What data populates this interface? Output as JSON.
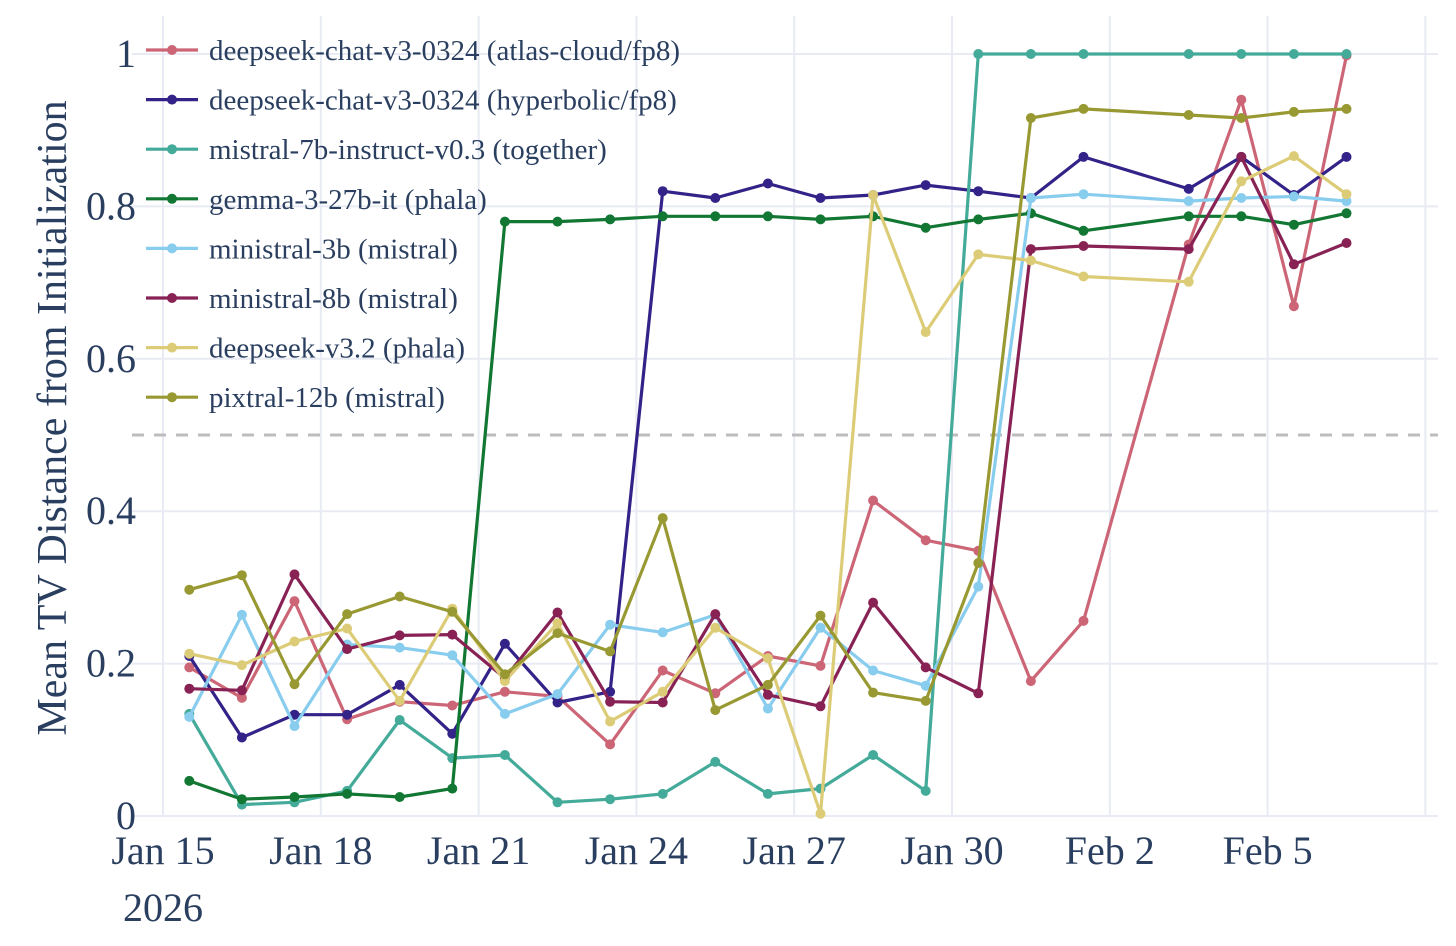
{
  "chart_data": {
    "type": "line",
    "title": "",
    "ylabel": "Mean TV Distance from Initialization",
    "xlabel": "",
    "x_ticks": [
      "Jan 15",
      "Jan 18",
      "Jan 21",
      "Jan 24",
      "Jan 27",
      "Jan 30",
      "Feb 2",
      "Feb 5"
    ],
    "x_tick_dates": [
      "2026-01-15",
      "2026-01-18",
      "2026-01-21",
      "2026-01-24",
      "2026-01-27",
      "2026-01-30",
      "2026-02-02",
      "2026-02-05"
    ],
    "x_year_label": "2026",
    "xlim": [
      "2026-01-15",
      "2026-02-09"
    ],
    "ylim": [
      0,
      1.04
    ],
    "y_ticks": [
      0,
      0.2,
      0.4,
      0.6,
      0.8,
      1
    ],
    "y_tick_labels": [
      "0",
      "0.2",
      "0.4",
      "0.6",
      "0.8",
      "1"
    ],
    "reference_line": {
      "y": 0.5,
      "style": "dashed",
      "color": "#bdbdbd"
    },
    "grid": true,
    "legend_position": "top-left",
    "series": [
      {
        "name": "deepseek-chat-v3-0324 (atlas-cloud/fp8)",
        "color": "#cc6677",
        "points": [
          [
            "2026-01-15T12:00",
            0.195
          ],
          [
            "2026-01-16T12:00",
            0.155
          ],
          [
            "2026-01-17T12:00",
            0.282
          ],
          [
            "2026-01-18T12:00",
            0.127
          ],
          [
            "2026-01-19T12:00",
            0.15
          ],
          [
            "2026-01-20T12:00",
            0.145
          ],
          [
            "2026-01-21T12:00",
            0.163
          ],
          [
            "2026-01-22T12:00",
            0.157
          ],
          [
            "2026-01-23T12:00",
            0.094
          ],
          [
            "2026-01-24T12:00",
            0.191
          ],
          [
            "2026-01-25T12:00",
            0.161
          ],
          [
            "2026-01-26T12:00",
            0.21
          ],
          [
            "2026-01-27T12:00",
            0.197
          ],
          [
            "2026-01-28T12:00",
            0.414
          ],
          [
            "2026-01-29T12:00",
            0.362
          ],
          [
            "2026-01-30T12:00",
            0.348
          ],
          [
            "2026-01-31T12:00",
            0.177
          ],
          [
            "2026-02-01T12:00",
            0.256
          ],
          [
            "2026-02-03T12:00",
            0.75
          ],
          [
            "2026-02-04T12:00",
            0.94
          ],
          [
            "2026-02-05T12:00",
            0.669
          ],
          [
            "2026-02-06T12:00",
            0.998
          ]
        ]
      },
      {
        "name": "deepseek-chat-v3-0324 (hyperbolic/fp8)",
        "color": "#332288",
        "points": [
          [
            "2026-01-15T12:00",
            0.21
          ],
          [
            "2026-01-16T12:00",
            0.103
          ],
          [
            "2026-01-17T12:00",
            0.133
          ],
          [
            "2026-01-18T12:00",
            0.133
          ],
          [
            "2026-01-19T12:00",
            0.172
          ],
          [
            "2026-01-20T12:00",
            0.108
          ],
          [
            "2026-01-21T12:00",
            0.226
          ],
          [
            "2026-01-22T12:00",
            0.149
          ],
          [
            "2026-01-23T12:00",
            0.163
          ],
          [
            "2026-01-24T12:00",
            0.82
          ],
          [
            "2026-01-25T12:00",
            0.811
          ],
          [
            "2026-01-26T12:00",
            0.83
          ],
          [
            "2026-01-27T12:00",
            0.811
          ],
          [
            "2026-01-28T12:00",
            0.815
          ],
          [
            "2026-01-29T12:00",
            0.828
          ],
          [
            "2026-01-30T12:00",
            0.82
          ],
          [
            "2026-01-31T12:00",
            0.811
          ],
          [
            "2026-02-01T12:00",
            0.865
          ],
          [
            "2026-02-03T12:00",
            0.823
          ],
          [
            "2026-02-04T12:00",
            0.865
          ],
          [
            "2026-02-05T12:00",
            0.815
          ],
          [
            "2026-02-06T12:00",
            0.865
          ]
        ]
      },
      {
        "name": "mistral-7b-instruct-v0.3 (together)",
        "color": "#44aa99",
        "points": [
          [
            "2026-01-15T12:00",
            0.134
          ],
          [
            "2026-01-16T12:00",
            0.015
          ],
          [
            "2026-01-17T12:00",
            0.018
          ],
          [
            "2026-01-18T12:00",
            0.033
          ],
          [
            "2026-01-19T12:00",
            0.126
          ],
          [
            "2026-01-20T12:00",
            0.076
          ],
          [
            "2026-01-21T12:00",
            0.08
          ],
          [
            "2026-01-22T12:00",
            0.018
          ],
          [
            "2026-01-23T12:00",
            0.022
          ],
          [
            "2026-01-24T12:00",
            0.029
          ],
          [
            "2026-01-25T12:00",
            0.071
          ],
          [
            "2026-01-26T12:00",
            0.029
          ],
          [
            "2026-01-27T12:00",
            0.036
          ],
          [
            "2026-01-28T12:00",
            0.08
          ],
          [
            "2026-01-29T12:00",
            0.033
          ],
          [
            "2026-01-30T12:00",
            1.0
          ],
          [
            "2026-01-31T12:00",
            1.0
          ],
          [
            "2026-02-01T12:00",
            1.0
          ],
          [
            "2026-02-03T12:00",
            1.0
          ],
          [
            "2026-02-04T12:00",
            1.0
          ],
          [
            "2026-02-05T12:00",
            1.0
          ],
          [
            "2026-02-06T12:00",
            1.0
          ]
        ]
      },
      {
        "name": "gemma-3-27b-it (phala)",
        "color": "#117733",
        "points": [
          [
            "2026-01-15T12:00",
            0.046
          ],
          [
            "2026-01-16T12:00",
            0.022
          ],
          [
            "2026-01-17T12:00",
            0.025
          ],
          [
            "2026-01-18T12:00",
            0.029
          ],
          [
            "2026-01-19T12:00",
            0.025
          ],
          [
            "2026-01-20T12:00",
            0.036
          ],
          [
            "2026-01-21T12:00",
            0.78
          ],
          [
            "2026-01-22T12:00",
            0.78
          ],
          [
            "2026-01-23T12:00",
            0.783
          ],
          [
            "2026-01-24T12:00",
            0.787
          ],
          [
            "2026-01-25T12:00",
            0.787
          ],
          [
            "2026-01-26T12:00",
            0.787
          ],
          [
            "2026-01-27T12:00",
            0.783
          ],
          [
            "2026-01-28T12:00",
            0.787
          ],
          [
            "2026-01-29T12:00",
            0.772
          ],
          [
            "2026-01-30T12:00",
            0.783
          ],
          [
            "2026-01-31T12:00",
            0.791
          ],
          [
            "2026-02-01T12:00",
            0.768
          ],
          [
            "2026-02-03T12:00",
            0.787
          ],
          [
            "2026-02-04T12:00",
            0.787
          ],
          [
            "2026-02-05T12:00",
            0.776
          ],
          [
            "2026-02-06T12:00",
            0.791
          ]
        ]
      },
      {
        "name": "ministral-3b (mistral)",
        "color": "#88ccee",
        "points": [
          [
            "2026-01-15T12:00",
            0.13
          ],
          [
            "2026-01-16T12:00",
            0.264
          ],
          [
            "2026-01-17T12:00",
            0.118
          ],
          [
            "2026-01-18T12:00",
            0.225
          ],
          [
            "2026-01-19T12:00",
            0.221
          ],
          [
            "2026-01-20T12:00",
            0.211
          ],
          [
            "2026-01-21T12:00",
            0.134
          ],
          [
            "2026-01-22T12:00",
            0.16
          ],
          [
            "2026-01-23T12:00",
            0.251
          ],
          [
            "2026-01-24T12:00",
            0.241
          ],
          [
            "2026-01-25T12:00",
            0.264
          ],
          [
            "2026-01-26T12:00",
            0.141
          ],
          [
            "2026-01-27T12:00",
            0.247
          ],
          [
            "2026-01-28T12:00",
            0.191
          ],
          [
            "2026-01-29T12:00",
            0.171
          ],
          [
            "2026-01-30T12:00",
            0.301
          ],
          [
            "2026-01-31T12:00",
            0.811
          ],
          [
            "2026-02-01T12:00",
            0.816
          ],
          [
            "2026-02-03T12:00",
            0.807
          ],
          [
            "2026-02-04T12:00",
            0.811
          ],
          [
            "2026-02-05T12:00",
            0.813
          ],
          [
            "2026-02-06T12:00",
            0.807
          ]
        ]
      },
      {
        "name": "ministral-8b (mistral)",
        "color": "#882255",
        "points": [
          [
            "2026-01-15T12:00",
            0.167
          ],
          [
            "2026-01-16T12:00",
            0.165
          ],
          [
            "2026-01-17T12:00",
            0.317
          ],
          [
            "2026-01-18T12:00",
            0.219
          ],
          [
            "2026-01-19T12:00",
            0.237
          ],
          [
            "2026-01-20T12:00",
            0.238
          ],
          [
            "2026-01-21T12:00",
            0.181
          ],
          [
            "2026-01-22T12:00",
            0.267
          ],
          [
            "2026-01-23T12:00",
            0.15
          ],
          [
            "2026-01-24T12:00",
            0.149
          ],
          [
            "2026-01-25T12:00",
            0.265
          ],
          [
            "2026-01-26T12:00",
            0.159
          ],
          [
            "2026-01-27T12:00",
            0.144
          ],
          [
            "2026-01-28T12:00",
            0.28
          ],
          [
            "2026-01-29T12:00",
            0.195
          ],
          [
            "2026-01-30T12:00",
            0.161
          ],
          [
            "2026-01-31T12:00",
            0.744
          ],
          [
            "2026-02-01T12:00",
            0.748
          ],
          [
            "2026-02-03T12:00",
            0.744
          ],
          [
            "2026-02-04T12:00",
            0.865
          ],
          [
            "2026-02-05T12:00",
            0.724
          ],
          [
            "2026-02-06T12:00",
            0.752
          ]
        ]
      },
      {
        "name": "deepseek-v3.2 (phala)",
        "color": "#ddcc77",
        "points": [
          [
            "2026-01-15T12:00",
            0.213
          ],
          [
            "2026-01-16T12:00",
            0.198
          ],
          [
            "2026-01-17T12:00",
            0.229
          ],
          [
            "2026-01-18T12:00",
            0.246
          ],
          [
            "2026-01-19T12:00",
            0.151
          ],
          [
            "2026-01-20T12:00",
            0.272
          ],
          [
            "2026-01-21T12:00",
            0.177
          ],
          [
            "2026-01-22T12:00",
            0.253
          ],
          [
            "2026-01-23T12:00",
            0.124
          ],
          [
            "2026-01-24T12:00",
            0.163
          ],
          [
            "2026-01-25T12:00",
            0.247
          ],
          [
            "2026-01-26T12:00",
            0.207
          ],
          [
            "2026-01-27T12:00",
            0.003
          ],
          [
            "2026-01-28T12:00",
            0.815
          ],
          [
            "2026-01-29T12:00",
            0.635
          ],
          [
            "2026-01-30T12:00",
            0.737
          ],
          [
            "2026-01-31T12:00",
            0.729
          ],
          [
            "2026-02-01T12:00",
            0.708
          ],
          [
            "2026-02-03T12:00",
            0.701
          ],
          [
            "2026-02-04T12:00",
            0.833
          ],
          [
            "2026-02-05T12:00",
            0.866
          ],
          [
            "2026-02-06T12:00",
            0.816
          ]
        ]
      },
      {
        "name": "pixtral-12b (mistral)",
        "color": "#999933",
        "points": [
          [
            "2026-01-15T12:00",
            0.297
          ],
          [
            "2026-01-16T12:00",
            0.316
          ],
          [
            "2026-01-17T12:00",
            0.173
          ],
          [
            "2026-01-18T12:00",
            0.265
          ],
          [
            "2026-01-19T12:00",
            0.288
          ],
          [
            "2026-01-20T12:00",
            0.268
          ],
          [
            "2026-01-21T12:00",
            0.186
          ],
          [
            "2026-01-22T12:00",
            0.24
          ],
          [
            "2026-01-23T12:00",
            0.216
          ],
          [
            "2026-01-24T12:00",
            0.391
          ],
          [
            "2026-01-25T12:00",
            0.139
          ],
          [
            "2026-01-26T12:00",
            0.172
          ],
          [
            "2026-01-27T12:00",
            0.263
          ],
          [
            "2026-01-28T12:00",
            0.162
          ],
          [
            "2026-01-29T12:00",
            0.151
          ],
          [
            "2026-01-30T12:00",
            0.332
          ],
          [
            "2026-01-31T12:00",
            0.916
          ],
          [
            "2026-02-01T12:00",
            0.928
          ],
          [
            "2026-02-03T12:00",
            0.92
          ],
          [
            "2026-02-04T12:00",
            0.916
          ],
          [
            "2026-02-05T12:00",
            0.924
          ],
          [
            "2026-02-06T12:00",
            0.928
          ]
        ]
      }
    ]
  }
}
